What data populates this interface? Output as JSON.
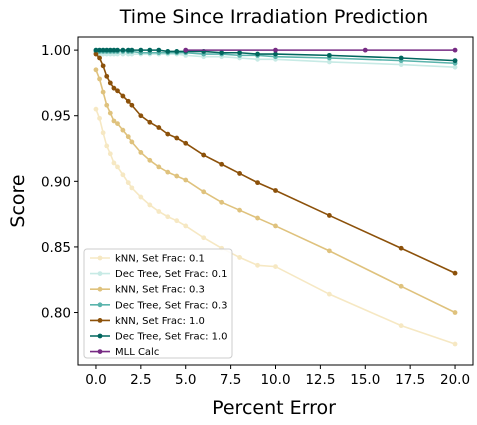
{
  "chart_data": {
    "type": "line",
    "title": "Time Since Irradiation Prediction",
    "xlabel": "Percent Error",
    "ylabel": "Score",
    "xlim": [
      -1,
      21
    ],
    "ylim": [
      0.76,
      1.01
    ],
    "xticks": [
      0.0,
      2.5,
      5.0,
      7.5,
      10.0,
      12.5,
      15.0,
      17.5,
      20.0
    ],
    "xtick_labels": [
      "0.0",
      "2.5",
      "5.0",
      "7.5",
      "10.0",
      "12.5",
      "15.0",
      "17.5",
      "20.0"
    ],
    "yticks": [
      0.8,
      0.85,
      0.9,
      0.95,
      1.0
    ],
    "ytick_labels": [
      "0.80",
      "0.85",
      "0.90",
      "0.95",
      "1.00"
    ],
    "grid": false,
    "legend_position": "lower-left",
    "series": [
      {
        "name": "kNN, Set Frac: 0.1",
        "color": "#f6e8c3",
        "x": [
          0.0,
          0.2,
          0.4,
          0.6,
          0.8,
          1.0,
          1.2,
          1.5,
          1.8,
          2.0,
          2.5,
          3.0,
          3.5,
          4.0,
          4.5,
          5.0,
          6.0,
          7.0,
          8.0,
          9.0,
          10.0,
          13.0,
          17.0,
          20.0
        ],
        "y": [
          0.955,
          0.948,
          0.937,
          0.927,
          0.921,
          0.914,
          0.911,
          0.905,
          0.899,
          0.895,
          0.888,
          0.882,
          0.877,
          0.873,
          0.87,
          0.866,
          0.857,
          0.849,
          0.842,
          0.836,
          0.835,
          0.814,
          0.79,
          0.776
        ]
      },
      {
        "name": "Dec Tree, Set Frac: 0.1",
        "color": "#c7eae5",
        "x": [
          0.0,
          0.2,
          0.4,
          0.6,
          0.8,
          1.0,
          1.2,
          1.5,
          1.8,
          2.0,
          2.5,
          3.0,
          3.5,
          4.0,
          4.5,
          5.0,
          6.0,
          7.0,
          8.0,
          9.0,
          10.0,
          13.0,
          17.0,
          20.0
        ],
        "y": [
          0.998,
          0.997,
          0.997,
          0.997,
          0.997,
          0.997,
          0.997,
          0.997,
          0.997,
          0.997,
          0.997,
          0.997,
          0.997,
          0.997,
          0.997,
          0.996,
          0.995,
          0.995,
          0.994,
          0.993,
          0.993,
          0.991,
          0.989,
          0.987
        ]
      },
      {
        "name": "kNN, Set Frac: 0.3",
        "color": "#dfc27d",
        "x": [
          0.0,
          0.2,
          0.4,
          0.6,
          0.8,
          1.0,
          1.2,
          1.5,
          1.8,
          2.0,
          2.5,
          3.0,
          3.5,
          4.0,
          4.5,
          5.0,
          6.0,
          7.0,
          8.0,
          9.0,
          10.0,
          13.0,
          17.0,
          20.0
        ],
        "y": [
          0.985,
          0.978,
          0.968,
          0.958,
          0.952,
          0.946,
          0.944,
          0.939,
          0.934,
          0.93,
          0.922,
          0.916,
          0.911,
          0.907,
          0.904,
          0.901,
          0.892,
          0.884,
          0.878,
          0.872,
          0.866,
          0.847,
          0.82,
          0.8
        ]
      },
      {
        "name": "Dec Tree, Set Frac: 0.3",
        "color": "#5ab4ac",
        "x": [
          0.0,
          0.2,
          0.4,
          0.6,
          0.8,
          1.0,
          1.2,
          1.5,
          1.8,
          2.0,
          2.5,
          3.0,
          3.5,
          4.0,
          4.5,
          5.0,
          6.0,
          7.0,
          8.0,
          9.0,
          10.0,
          13.0,
          17.0,
          20.0
        ],
        "y": [
          0.999,
          0.999,
          0.999,
          0.999,
          0.999,
          0.999,
          0.999,
          0.999,
          0.999,
          0.999,
          0.998,
          0.998,
          0.998,
          0.998,
          0.998,
          0.998,
          0.997,
          0.997,
          0.996,
          0.996,
          0.995,
          0.994,
          0.992,
          0.99
        ]
      },
      {
        "name": "kNN, Set Frac: 1.0",
        "color": "#8c510a",
        "x": [
          0.0,
          0.2,
          0.4,
          0.6,
          0.8,
          1.0,
          1.2,
          1.5,
          1.8,
          2.0,
          2.5,
          3.0,
          3.5,
          4.0,
          4.5,
          5.0,
          6.0,
          7.0,
          8.0,
          9.0,
          10.0,
          13.0,
          17.0,
          20.0
        ],
        "y": [
          0.997,
          0.994,
          0.988,
          0.98,
          0.975,
          0.971,
          0.969,
          0.965,
          0.961,
          0.958,
          0.95,
          0.945,
          0.941,
          0.936,
          0.933,
          0.929,
          0.92,
          0.913,
          0.906,
          0.899,
          0.893,
          0.874,
          0.849,
          0.83
        ]
      },
      {
        "name": "Dec Tree, Set Frac: 1.0",
        "color": "#01665e",
        "x": [
          0.0,
          0.2,
          0.4,
          0.6,
          0.8,
          1.0,
          1.2,
          1.5,
          1.8,
          2.0,
          2.5,
          3.0,
          3.5,
          4.0,
          4.5,
          5.0,
          6.0,
          7.0,
          8.0,
          9.0,
          10.0,
          13.0,
          17.0,
          20.0
        ],
        "y": [
          1.0,
          1.0,
          1.0,
          1.0,
          1.0,
          1.0,
          1.0,
          1.0,
          1.0,
          1.0,
          1.0,
          1.0,
          1.0,
          0.999,
          0.999,
          0.999,
          0.999,
          0.998,
          0.998,
          0.997,
          0.997,
          0.996,
          0.994,
          0.992
        ]
      },
      {
        "name": "MLL Calc",
        "color": "#762a83",
        "x": [
          5.0,
          10.0,
          15.0,
          20.0
        ],
        "y": [
          1.0,
          1.0,
          1.0,
          1.0
        ]
      }
    ]
  }
}
